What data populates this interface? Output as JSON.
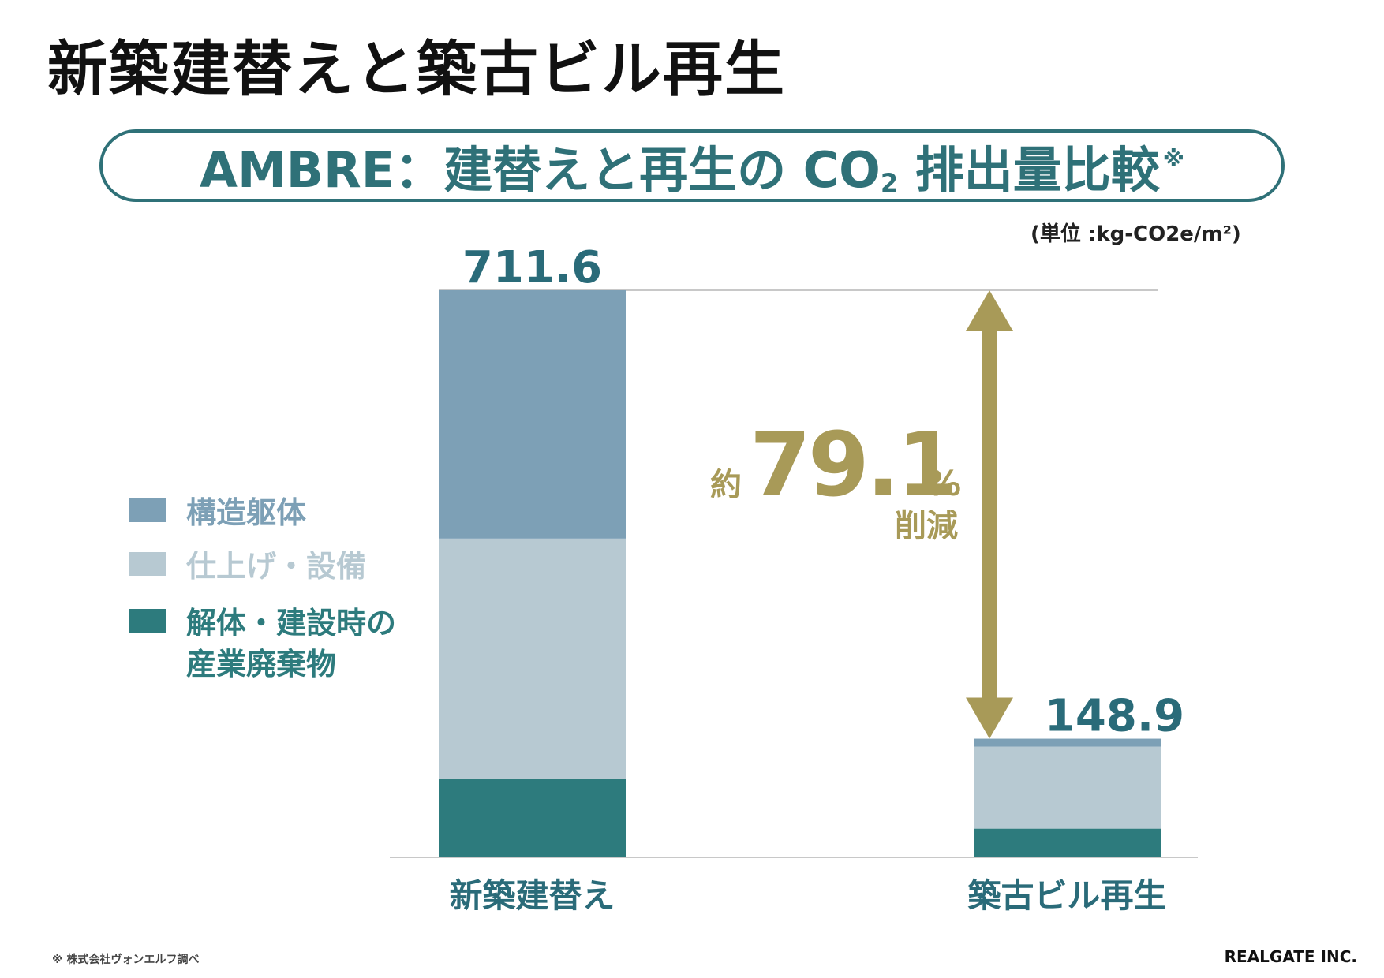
{
  "page_title": "新築建替えと築古ビル再生",
  "subtitle": {
    "main": "AMBRE：建替えと再生の CO",
    "sub": "2",
    "after": " 排出量比較",
    "mark": "※"
  },
  "unit_label": "(単位 :kg-CO2e/m²)",
  "legend": [
    {
      "label": "構造躯体",
      "color": "#7da0b6",
      "text_color": "#7da0b6"
    },
    {
      "label": "仕上げ・設備",
      "color": "#b7c9d2",
      "text_color": "#b7c9d2"
    },
    {
      "label": "解体・建設時の\n産業廃棄物",
      "color": "#2d7b7d",
      "text_color": "#2d7b7d"
    }
  ],
  "reduction": {
    "prefix": "約",
    "value": "79.1",
    "unit": "%",
    "suffix": "削減",
    "color": "#a89a58"
  },
  "footnote": "※ 株式会社ヴォンエルフ調べ",
  "company": "REALGATE INC.",
  "chart_data": {
    "type": "bar",
    "stacked": true,
    "categories": [
      "新築建替え",
      "築古ビル再生"
    ],
    "totals": [
      711.6,
      148.9
    ],
    "series": [
      {
        "name": "解体・建設時の産業廃棄物",
        "values": [
          98,
          36
        ],
        "color": "#2d7b7d"
      },
      {
        "name": "仕上げ・設備",
        "values": [
          302,
          103
        ],
        "color": "#b7c9d2"
      },
      {
        "name": "構造躯体",
        "values": [
          311.6,
          9.9
        ],
        "color": "#7da0b6"
      }
    ],
    "total_label_color": "#2a6b79",
    "ylim": [
      0,
      711.6
    ]
  }
}
